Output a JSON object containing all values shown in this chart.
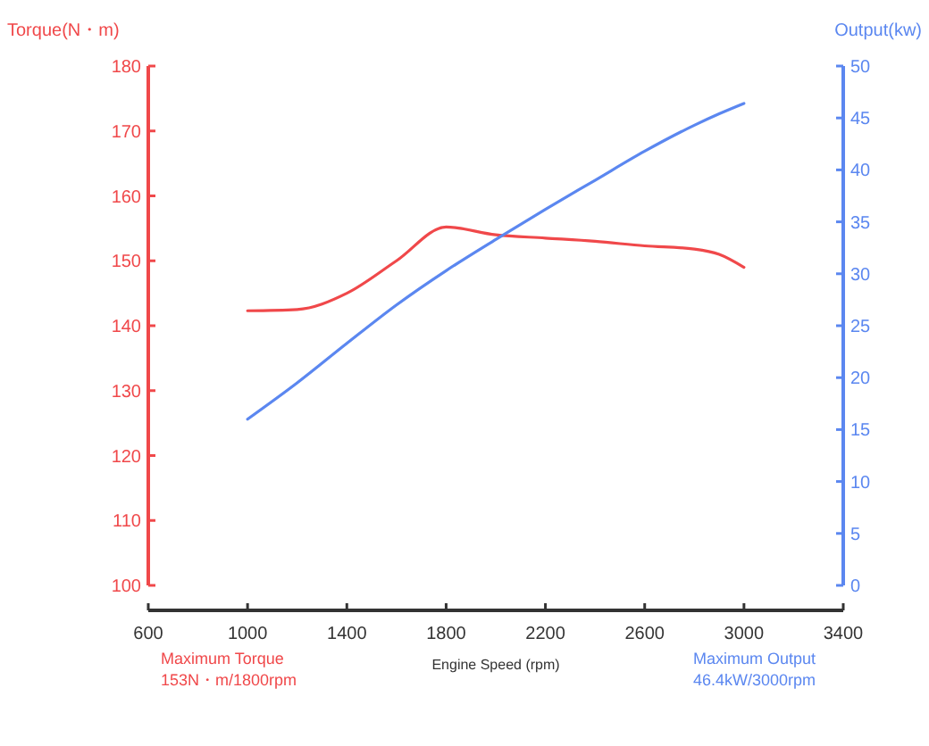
{
  "chart_data": {
    "type": "line",
    "xlabel": "Engine Speed (rpm)",
    "ylabel": "Torque(N・m)",
    "y2label": "Output(kw)",
    "x": [
      1000,
      1200,
      1400,
      1600,
      1800,
      2000,
      2200,
      2400,
      2600,
      2800,
      2900,
      3000
    ],
    "series": [
      {
        "color": "#f0484a",
        "values": [
          142.3,
          142.5,
          145,
          150,
          155.2,
          154,
          153.5,
          153,
          152.3,
          151.8,
          151,
          149
        ]
      },
      {
        "color": "#5b87f0",
        "axis": "y2",
        "values": [
          16,
          19.5,
          23.3,
          27,
          30.3,
          33.3,
          36.2,
          39,
          41.8,
          44.3,
          45.4,
          46.4
        ]
      }
    ],
    "xlim": [
      600,
      3400
    ],
    "xticks": [
      600,
      1000,
      1400,
      1800,
      2200,
      2600,
      3000,
      3400
    ],
    "ylim": [
      100,
      180
    ],
    "yticks": [
      100,
      110,
      120,
      130,
      140,
      150,
      160,
      170,
      180
    ],
    "y2lim": [
      0,
      50
    ],
    "y2ticks": [
      0,
      5,
      10,
      15,
      20,
      25,
      30,
      35,
      40,
      45,
      50
    ],
    "marker": "none",
    "line_style": "solid",
    "annotations": [
      "Maximum Torque\n153N・m/1800rpm",
      "Maximum Output\n46.4kW/3000rpm"
    ]
  }
}
